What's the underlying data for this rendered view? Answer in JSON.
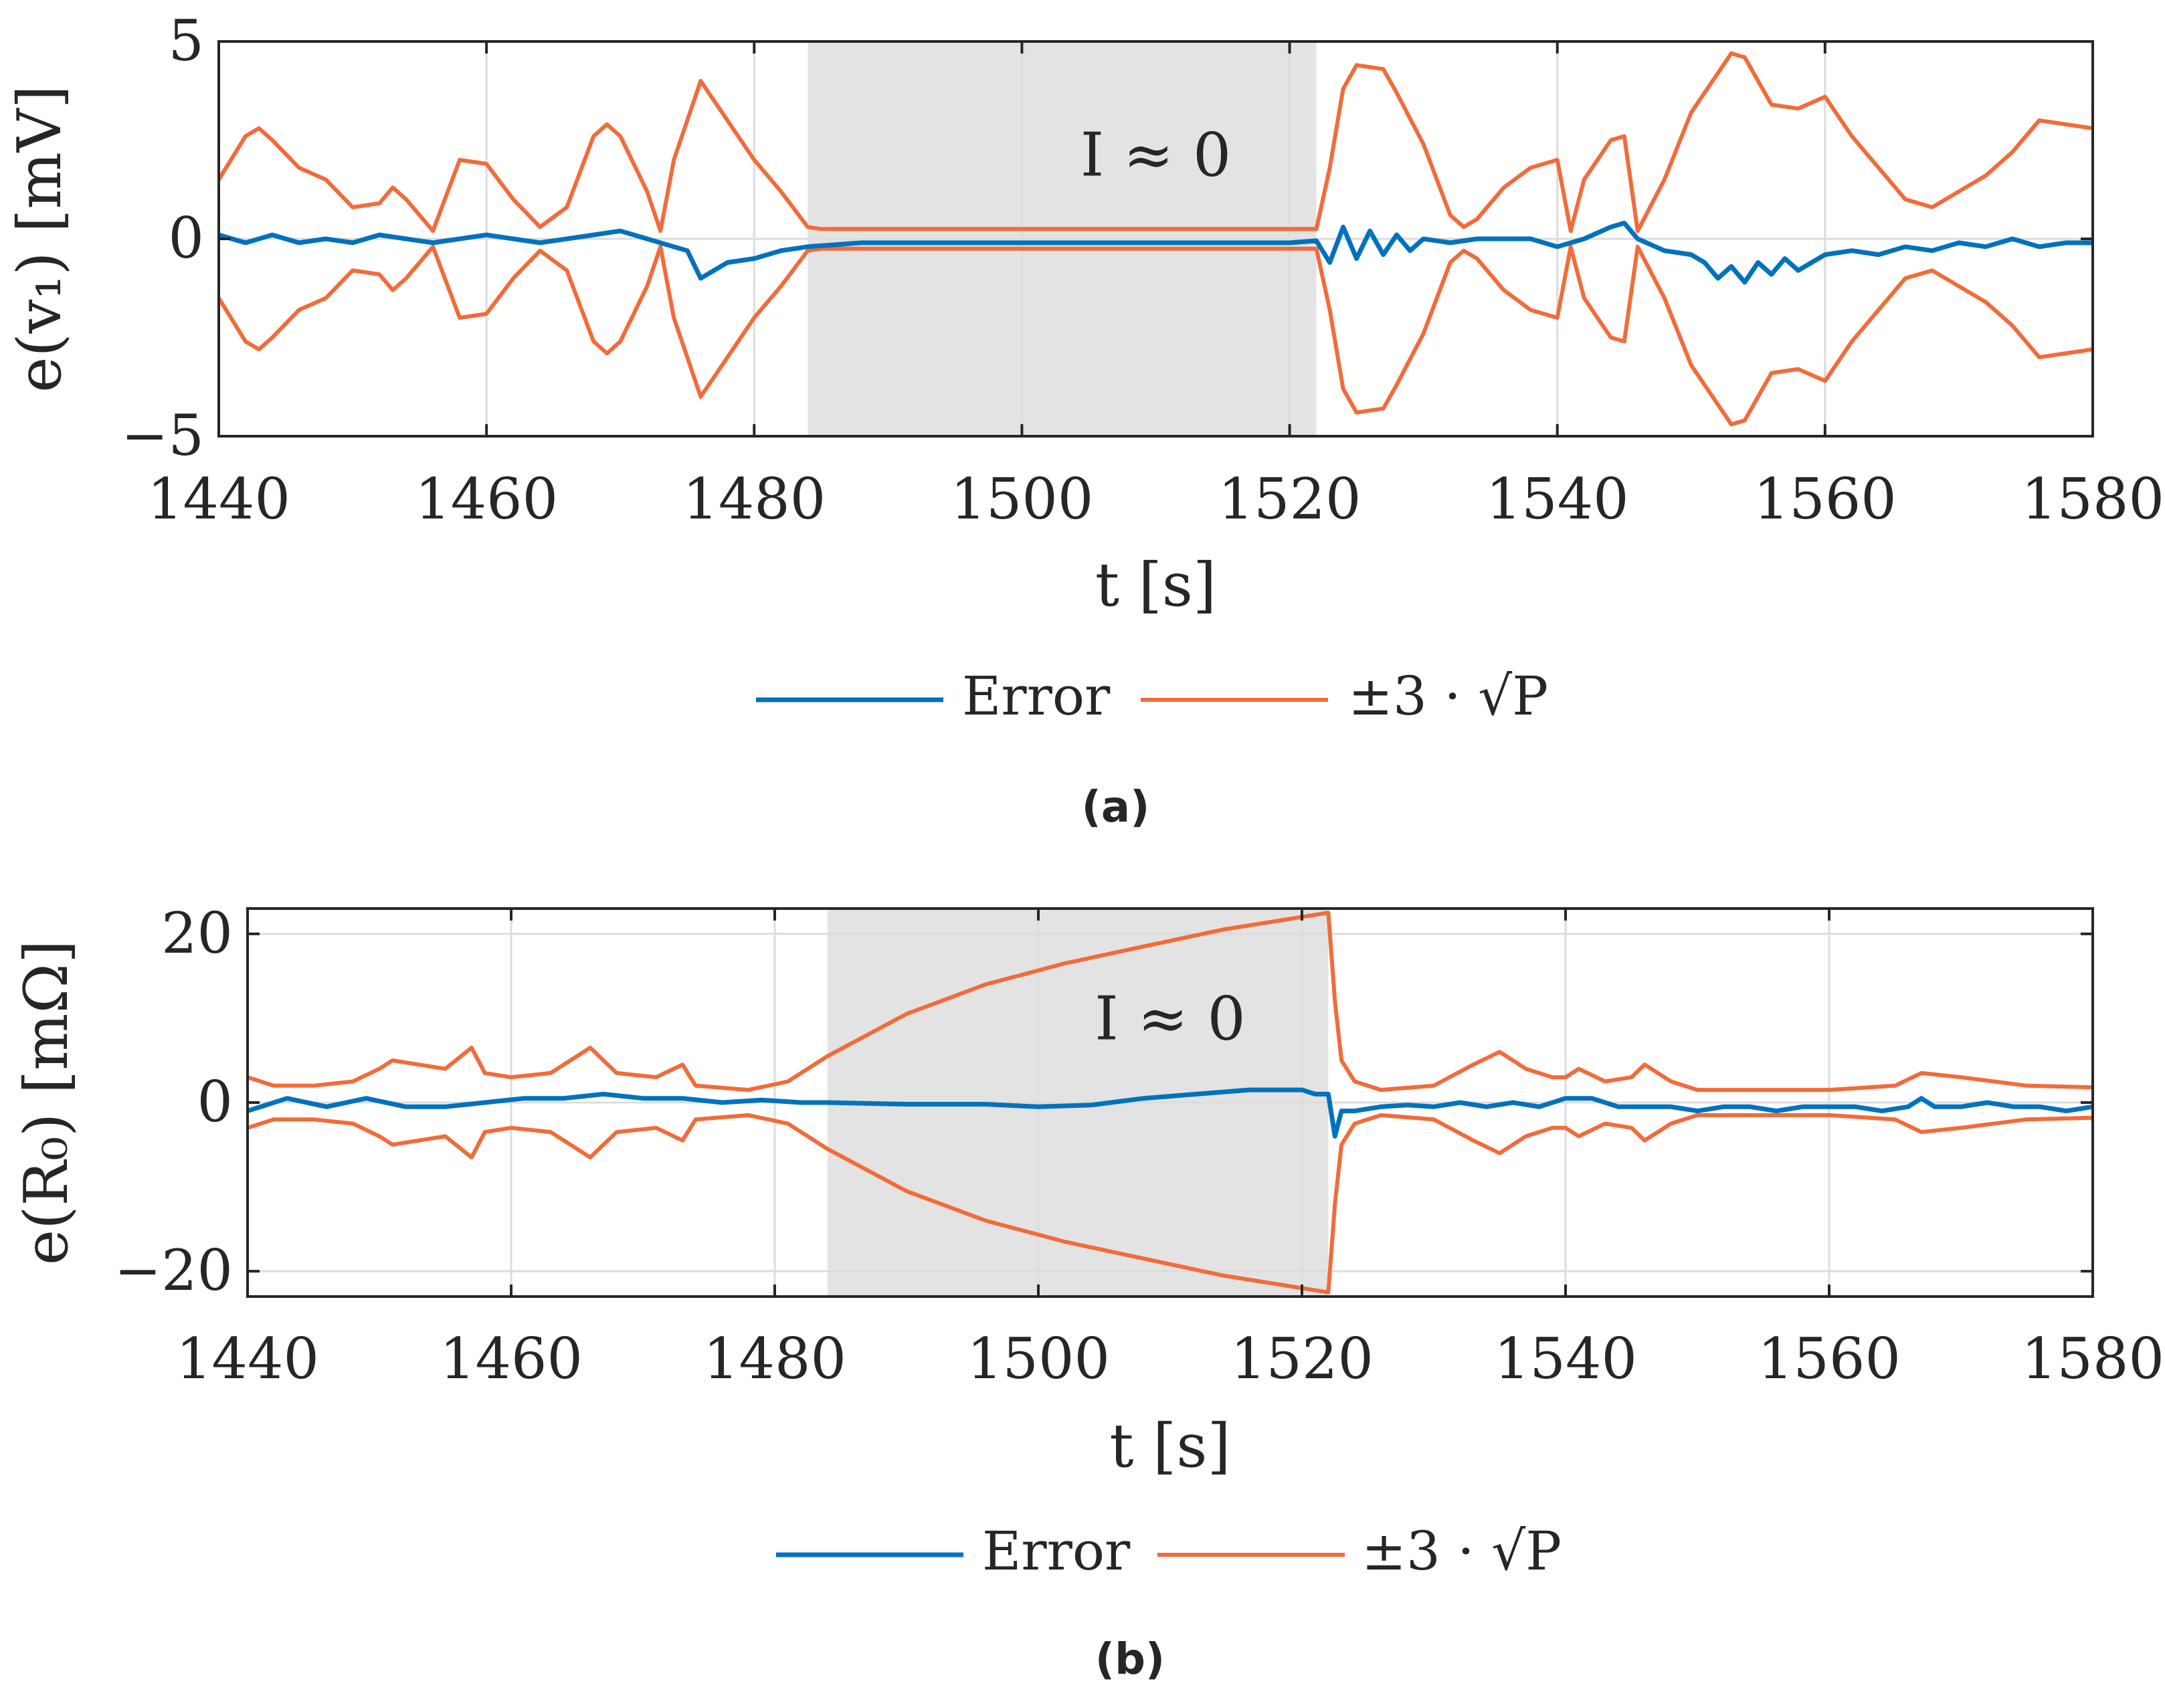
{
  "colors": {
    "error": "#0072BD",
    "bound": "#F26B3A",
    "shade": "#E3E3E3",
    "grid": "#DCDCDC",
    "axis": "#262626"
  },
  "chart_data": [
    {
      "type": "line",
      "id": "a",
      "caption_letter": "a",
      "caption": "(a)",
      "ylabel": "e(v₁) [mV]",
      "xlabel": "t [s]",
      "xlim": [
        1440,
        1580
      ],
      "ylim": [
        -5,
        5
      ],
      "xticks": [
        "1440",
        "1460",
        "1480",
        "1500",
        "1520",
        "1540",
        "1560",
        "1580"
      ],
      "yticks": [
        "5",
        "0",
        "−5"
      ],
      "ytick_values": [
        5,
        0,
        -5
      ],
      "shaded_region": {
        "x_start": 1484,
        "x_end": 1522,
        "label": "I ≈ 0",
        "label_x": 1510,
        "label_y": 1.6
      },
      "legend": [
        "Error",
        "±3 · √P"
      ],
      "series": [
        {
          "name": "Error",
          "x": [
            1440,
            1442,
            1444,
            1446,
            1448,
            1450,
            1452,
            1454,
            1456,
            1458,
            1460,
            1462,
            1464,
            1466,
            1468,
            1470,
            1472,
            1474,
            1475,
            1476,
            1478,
            1480,
            1482,
            1484,
            1488,
            1492,
            1496,
            1500,
            1504,
            1508,
            1512,
            1516,
            1520,
            1522,
            1523,
            1524,
            1525,
            1526,
            1527,
            1528,
            1529,
            1530,
            1532,
            1534,
            1536,
            1538,
            1540,
            1542,
            1544,
            1545,
            1546,
            1548,
            1550,
            1551,
            1552,
            1553,
            1554,
            1555,
            1556,
            1557,
            1558,
            1560,
            1562,
            1564,
            1566,
            1568,
            1570,
            1572,
            1574,
            1576,
            1578,
            1580
          ],
          "values": [
            0.1,
            -0.1,
            0.1,
            -0.1,
            0.0,
            -0.1,
            0.1,
            0.0,
            -0.1,
            0.0,
            0.1,
            0.0,
            -0.1,
            0.0,
            0.1,
            0.2,
            0.0,
            -0.2,
            -0.3,
            -1.0,
            -0.6,
            -0.5,
            -0.3,
            -0.2,
            -0.1,
            -0.1,
            -0.1,
            -0.1,
            -0.1,
            -0.1,
            -0.1,
            -0.1,
            -0.1,
            -0.05,
            -0.6,
            0.3,
            -0.5,
            0.2,
            -0.4,
            0.1,
            -0.3,
            0.0,
            -0.1,
            0.0,
            0.0,
            0.0,
            -0.2,
            0.0,
            0.3,
            0.4,
            0.0,
            -0.3,
            -0.4,
            -0.6,
            -1.0,
            -0.7,
            -1.1,
            -0.6,
            -0.9,
            -0.5,
            -0.8,
            -0.4,
            -0.3,
            -0.4,
            -0.2,
            -0.3,
            -0.1,
            -0.2,
            0.0,
            -0.2,
            -0.1,
            -0.1
          ]
        },
        {
          "name": "±3 · √P",
          "symmetric": true,
          "x": [
            1440,
            1442,
            1443,
            1444,
            1446,
            1448,
            1450,
            1452,
            1453,
            1454,
            1456,
            1458,
            1460,
            1462,
            1464,
            1466,
            1468,
            1469,
            1470,
            1472,
            1473,
            1474,
            1476,
            1478,
            1480,
            1482,
            1484,
            1485,
            1490,
            1500,
            1510,
            1520,
            1522,
            1523,
            1524,
            1525,
            1527,
            1528,
            1530,
            1532,
            1533,
            1534,
            1536,
            1538,
            1540,
            1541,
            1542,
            1544,
            1545,
            1546,
            1548,
            1550,
            1552,
            1553,
            1554,
            1556,
            1558,
            1560,
            1562,
            1564,
            1565,
            1566,
            1568,
            1570,
            1572,
            1574,
            1576,
            1578,
            1580
          ],
          "values": [
            1.5,
            2.6,
            2.8,
            2.5,
            1.8,
            1.5,
            0.8,
            0.9,
            1.3,
            1.0,
            0.2,
            2.0,
            1.9,
            1.0,
            0.3,
            0.8,
            2.6,
            2.9,
            2.6,
            1.2,
            0.2,
            2.0,
            4.0,
            3.0,
            2.0,
            1.2,
            0.3,
            0.25,
            0.25,
            0.25,
            0.25,
            0.25,
            0.25,
            1.8,
            3.8,
            4.4,
            4.3,
            3.7,
            2.4,
            0.6,
            0.3,
            0.5,
            1.3,
            1.8,
            2.0,
            0.2,
            1.5,
            2.5,
            2.6,
            0.2,
            1.5,
            3.2,
            4.2,
            4.7,
            4.6,
            3.4,
            3.3,
            3.6,
            2.6,
            1.8,
            1.4,
            1.0,
            0.8,
            1.2,
            1.6,
            2.2,
            3.0,
            2.9,
            2.8
          ]
        }
      ]
    },
    {
      "type": "line",
      "id": "b",
      "caption_letter": "b",
      "caption": "(b)",
      "ylabel": "e(R₀) [mΩ]",
      "xlabel": "t [s]",
      "xlim": [
        1440,
        1580
      ],
      "ylim": [
        -23,
        23
      ],
      "xticks": [
        "1440",
        "1460",
        "1480",
        "1500",
        "1520",
        "1540",
        "1560",
        "1580"
      ],
      "yticks": [
        "20",
        "0",
        "−20"
      ],
      "ytick_values": [
        20,
        0,
        -20
      ],
      "shaded_region": {
        "x_start": 1484,
        "x_end": 1522,
        "label": "I ≈ 0",
        "label_x": 1510,
        "label_y": 7.5
      },
      "legend": [
        "Error",
        "±3 · √P"
      ],
      "series": [
        {
          "name": "Error",
          "x": [
            1440,
            1443,
            1446,
            1449,
            1452,
            1455,
            1458,
            1461,
            1464,
            1467,
            1470,
            1473,
            1476,
            1479,
            1482,
            1484,
            1490,
            1496,
            1500,
            1504,
            1508,
            1512,
            1516,
            1520,
            1521,
            1522,
            1522.5,
            1523,
            1524,
            1526,
            1528,
            1530,
            1532,
            1534,
            1536,
            1538,
            1540,
            1542,
            1544,
            1546,
            1548,
            1550,
            1552,
            1554,
            1556,
            1558,
            1560,
            1562,
            1564,
            1566,
            1567,
            1568,
            1570,
            1572,
            1574,
            1576,
            1578,
            1580
          ],
          "values": [
            -1.0,
            0.5,
            -0.5,
            0.5,
            -0.5,
            -0.5,
            0.0,
            0.5,
            0.5,
            1.0,
            0.5,
            0.5,
            0.0,
            0.3,
            0.0,
            0.0,
            -0.2,
            -0.2,
            -0.5,
            -0.3,
            0.5,
            1.0,
            1.5,
            1.5,
            1.0,
            1.0,
            -4.0,
            -1.0,
            -1.0,
            -0.5,
            -0.3,
            -0.5,
            0.0,
            -0.5,
            0.0,
            -0.5,
            0.5,
            0.5,
            -0.5,
            -0.5,
            -0.5,
            -1.0,
            -0.5,
            -0.5,
            -1.0,
            -0.5,
            -0.5,
            -0.5,
            -1.0,
            -0.5,
            0.5,
            -0.5,
            -0.5,
            0.0,
            -0.5,
            -0.5,
            -1.0,
            -0.5
          ]
        },
        {
          "name": "±3 · √P",
          "symmetric": true,
          "x": [
            1440,
            1442,
            1445,
            1448,
            1450,
            1451,
            1453,
            1455,
            1457,
            1458,
            1460,
            1463,
            1465,
            1466,
            1468,
            1471,
            1473,
            1474,
            1478,
            1481,
            1484,
            1490,
            1496,
            1502,
            1508,
            1514,
            1520,
            1522,
            1522.5,
            1523,
            1524,
            1526,
            1530,
            1533,
            1535,
            1537,
            1539,
            1540,
            1541,
            1543,
            1545,
            1546,
            1548,
            1550,
            1555,
            1560,
            1565,
            1567,
            1570,
            1575,
            1580
          ],
          "values": [
            3.0,
            2.0,
            2.0,
            2.5,
            4.0,
            5.0,
            4.5,
            4.0,
            6.5,
            3.5,
            3.0,
            3.5,
            5.5,
            6.5,
            3.5,
            3.0,
            4.5,
            2.0,
            1.5,
            2.5,
            5.5,
            10.5,
            14.0,
            16.5,
            18.5,
            20.5,
            22.0,
            22.5,
            12.0,
            5.0,
            2.5,
            1.5,
            2.0,
            4.5,
            6.0,
            4.0,
            3.0,
            3.0,
            4.0,
            2.5,
            3.0,
            4.5,
            2.5,
            1.5,
            1.5,
            1.5,
            2.0,
            3.5,
            3.0,
            2.0,
            1.8
          ]
        }
      ]
    }
  ]
}
